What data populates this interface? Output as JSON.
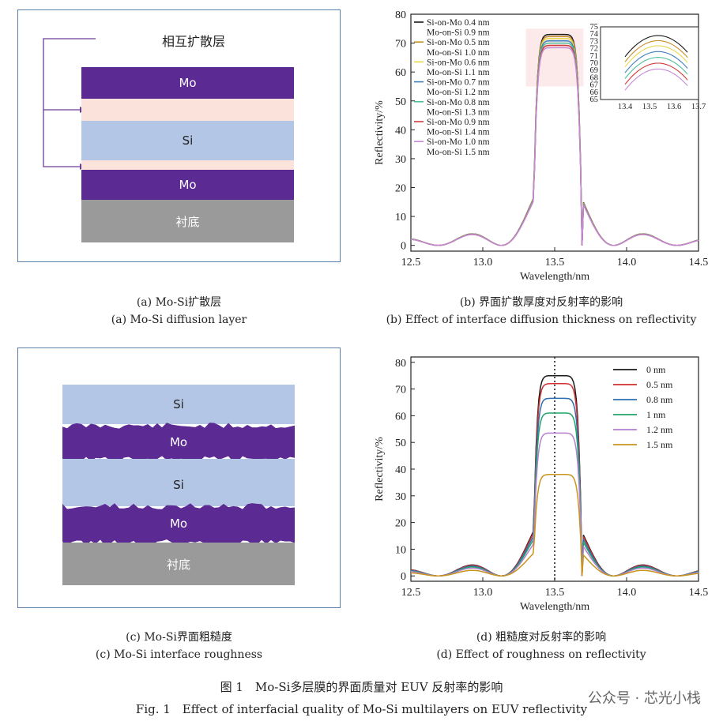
{
  "panel_a": {
    "label_interdiffusion": "相互扩散层",
    "layers": [
      "Mo",
      "Si",
      "Mo",
      "衬底"
    ],
    "caption_cn": "(a) Mo-Si扩散层",
    "caption_en": "(a) Mo-Si diffusion layer"
  },
  "panel_b": {
    "caption_cn": "(b) 界面扩散厚度对反射率的影响",
    "caption_en": "(b) Effect of interface diffusion thickness on reflectivity"
  },
  "panel_c": {
    "layers": [
      "Si",
      "Mo",
      "Si",
      "Mo",
      "衬底"
    ],
    "caption_cn": "(c) Mo-Si界面粗糙度",
    "caption_en": "(c) Mo-Si interface roughness"
  },
  "panel_d": {
    "caption_cn": "(d) 粗糙度对反射率的影响",
    "caption_en": "(d) Effect of roughness on reflectivity"
  },
  "figure": {
    "caption_cn": "图 1　Mo-Si多层膜的界面质量对 EUV 反射率的影响",
    "caption_en": "Fig. 1　Effect of interfacial quality of Mo-Si multilayers on EUV reflectivity"
  },
  "watermark": "公众号 · 芯光小栈",
  "colors": {
    "mo": "#5b2a93",
    "si": "#b3c6e5",
    "diffusion": "#fbe3dc",
    "substrate": "#9a9a9a",
    "frame": "#5a7fa8"
  },
  "chart_data": [
    {
      "type": "line",
      "xlabel": "Wavelength/nm",
      "ylabel": "Reflectivity/%",
      "xlim": [
        12.5,
        14.5
      ],
      "ylim": [
        -2,
        80
      ],
      "xticks": [
        12.5,
        13.0,
        13.5,
        14.0,
        14.5
      ],
      "yticks": [
        0,
        10,
        20,
        30,
        40,
        50,
        60,
        70,
        80
      ],
      "legend_position": "top-left",
      "series": [
        {
          "name": "Si-on-Mo 0.4 nm / Mo-on-Si 0.9 nm",
          "color": "#1a1a1a",
          "peak": 73.0
        },
        {
          "name": "Si-on-Mo 0.5 nm / Mo-on-Si 1.0 nm",
          "color": "#c8902a",
          "peak": 72.3
        },
        {
          "name": "Si-on-Mo 0.6 nm / Mo-on-Si 1.1 nm",
          "color": "#e8d84a",
          "peak": 71.6
        },
        {
          "name": "Si-on-Mo 0.7 nm / Mo-on-Si 1.2 nm",
          "color": "#3e7fc0",
          "peak": 70.8
        },
        {
          "name": "Si-on-Mo 0.8 nm / Mo-on-Si 1.3 nm",
          "color": "#4fbf9a",
          "peak": 70.0
        },
        {
          "name": "Si-on-Mo 0.9 nm / Mo-on-Si 1.4 nm",
          "color": "#d13b3b",
          "peak": 69.2
        },
        {
          "name": "Si-on-Mo 1.0 nm / Mo-on-Si 1.5 nm",
          "color": "#c58ad6",
          "peak": 68.4
        }
      ],
      "legend_lines": [
        "Si-on-Mo 0.4 nm",
        "Mo-on-Si 0.9 nm",
        "Si-on-Mo 0.5 nm",
        "Mo-on-Si 1.0 nm",
        "Si-on-Mo 0.6 nm",
        "Mo-on-Si 1.1 nm",
        "Si-on-Mo 0.7 nm",
        "Mo-on-Si 1.2 nm",
        "Si-on-Mo 0.8 nm",
        "Mo-on-Si 1.3 nm",
        "Si-on-Mo 0.9 nm",
        "Mo-on-Si 1.4 nm",
        "Si-on-Mo 1.0 nm",
        "Mo-on-Si 1.5 nm"
      ],
      "inset": {
        "xlim": [
          13.3,
          13.7
        ],
        "ylim": [
          65,
          75
        ],
        "xticks": [
          13.4,
          13.5,
          13.6,
          13.7
        ],
        "yticks": [
          65,
          66,
          67,
          68,
          69,
          70,
          71,
          72,
          73,
          74,
          75
        ]
      },
      "highlight_region": {
        "x": [
          13.3,
          13.7
        ],
        "y": [
          55,
          75
        ]
      }
    },
    {
      "type": "line",
      "xlabel": "Wavelength/nm",
      "ylabel": "Reflectivity/%",
      "xlim": [
        12.5,
        14.5
      ],
      "ylim": [
        -2,
        82
      ],
      "xticks": [
        12.5,
        13.0,
        13.5,
        14.0,
        14.5
      ],
      "yticks": [
        0,
        10,
        20,
        30,
        40,
        50,
        60,
        70,
        80
      ],
      "legend_position": "top-right",
      "reference_line_x": 13.5,
      "series": [
        {
          "name": "0 nm",
          "color": "#1a1a1a",
          "peak": 75.0
        },
        {
          "name": "0.5 nm",
          "color": "#d33030",
          "peak": 72.0
        },
        {
          "name": "0.8 nm",
          "color": "#2c6fb3",
          "peak": 66.5
        },
        {
          "name": "1 nm",
          "color": "#22a36a",
          "peak": 61.0
        },
        {
          "name": "1.2 nm",
          "color": "#b57fd0",
          "peak": 53.5
        },
        {
          "name": "1.5 nm",
          "color": "#c9951c",
          "peak": 38.0
        }
      ]
    }
  ]
}
